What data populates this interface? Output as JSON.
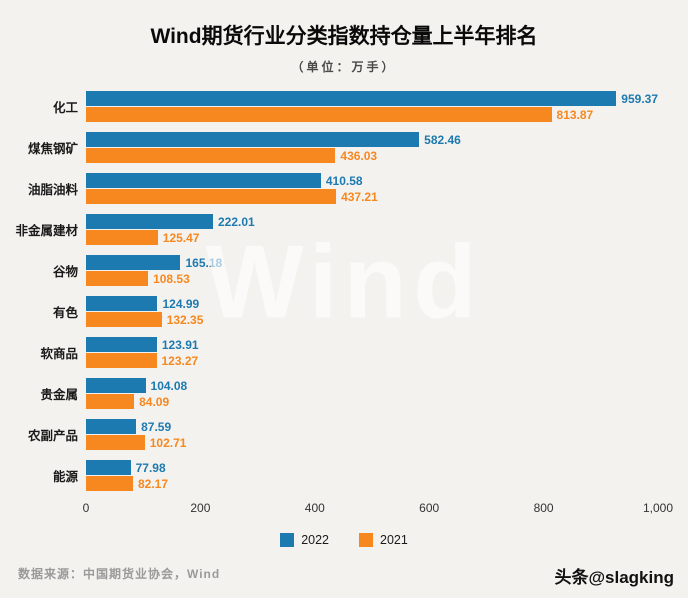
{
  "title": "Wind期货行业分类指数持仓量上半年排名",
  "subtitle": "（单位：万手）",
  "watermark": "Wind",
  "footer": {
    "source": "数据来源：中国期货业协会，Wind",
    "credit": "头条@slagking"
  },
  "colors": {
    "series_2022": "#1c7ab0",
    "series_2021": "#f6881f",
    "background": "#f4f2ef"
  },
  "chart_data": {
    "type": "bar",
    "orientation": "horizontal",
    "title": "Wind期货行业分类指数持仓量上半年排名",
    "subtitle": "（单位：万手）",
    "categories": [
      "化工",
      "煤焦钢矿",
      "油脂油料",
      "非金属建材",
      "谷物",
      "有色",
      "软商品",
      "贵金属",
      "农副产品",
      "能源"
    ],
    "series": [
      {
        "name": "2022",
        "color": "#1c7ab0",
        "values": [
          959.37,
          582.46,
          410.58,
          222.01,
          165.18,
          124.99,
          123.91,
          104.08,
          87.59,
          77.98
        ]
      },
      {
        "name": "2021",
        "color": "#f6881f",
        "values": [
          813.87,
          436.03,
          437.21,
          125.47,
          108.53,
          132.35,
          123.27,
          84.09,
          102.71,
          82.17
        ]
      }
    ],
    "x_ticks": [
      "0",
      "200",
      "400",
      "600",
      "800",
      "1,000"
    ],
    "x_max": 1000,
    "grid": false,
    "legend_position": "bottom"
  }
}
